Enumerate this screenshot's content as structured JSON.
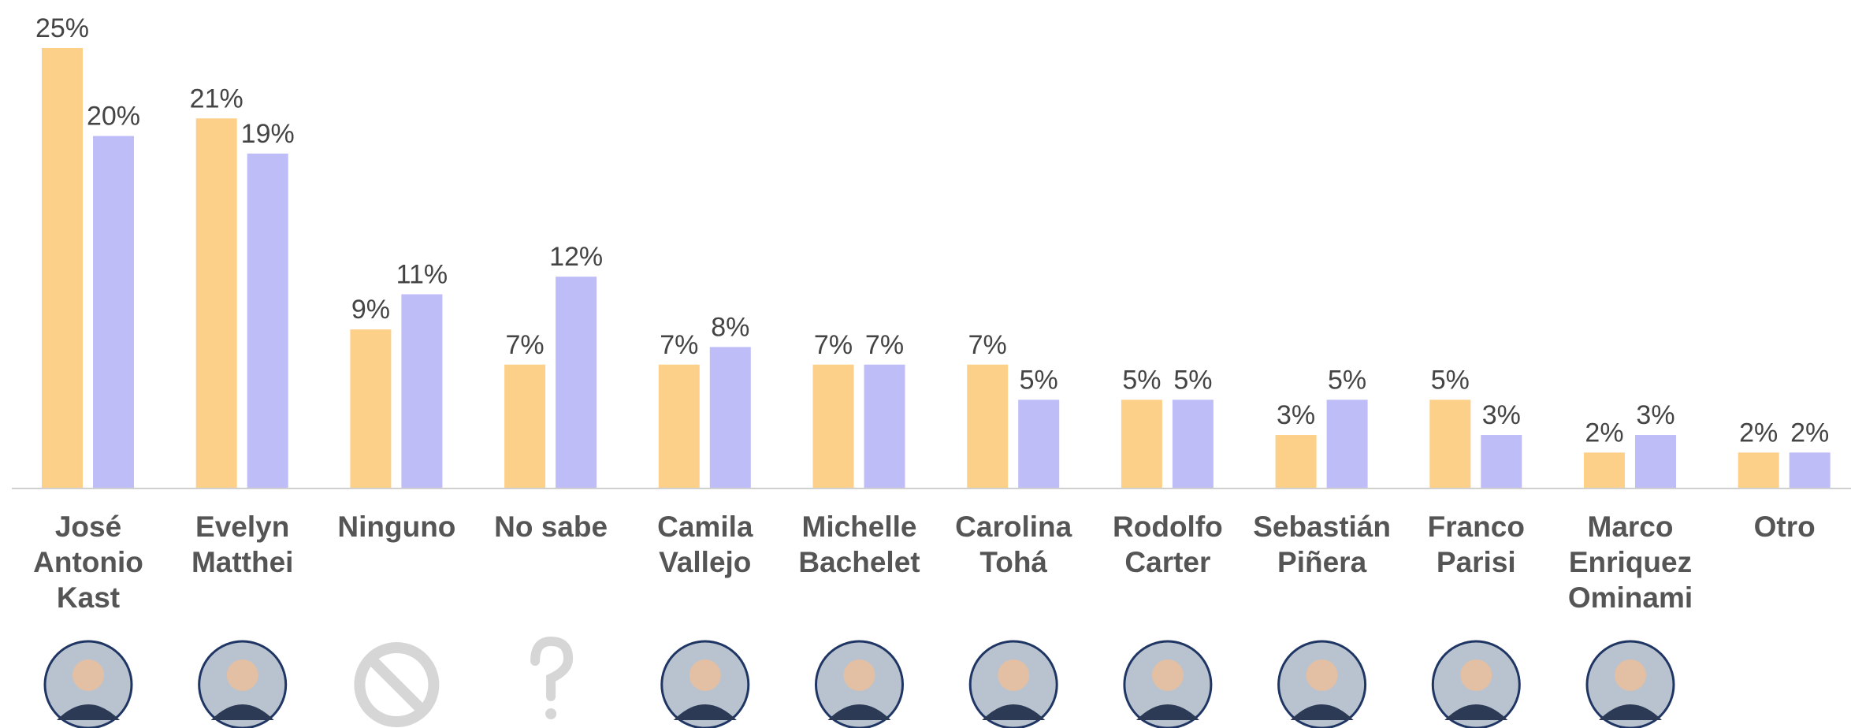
{
  "chart_data": {
    "type": "bar",
    "categories": [
      [
        "José",
        "Antonio",
        "Kast"
      ],
      [
        "Evelyn",
        "Matthei"
      ],
      [
        "Ninguno"
      ],
      [
        "No sabe"
      ],
      [
        "Camila",
        "Vallejo"
      ],
      [
        "Michelle",
        "Bachelet"
      ],
      [
        "Carolina",
        "Tohá"
      ],
      [
        "Rodolfo",
        "Carter"
      ],
      [
        "Sebastián",
        "Piñera"
      ],
      [
        "Franco",
        "Parisi"
      ],
      [
        "Marco",
        "Enriquez",
        "Ominami"
      ],
      [
        "Otro"
      ]
    ],
    "series": [
      {
        "color": "#fdd08a",
        "values": [
          25,
          21,
          9,
          7,
          7,
          7,
          7,
          5,
          3,
          5,
          2,
          2
        ],
        "value_labels": [
          "25%",
          "21%",
          "9%",
          "7%",
          "7%",
          "7%",
          "7%",
          "5%",
          "3%",
          "5%",
          "2%",
          "2%"
        ]
      },
      {
        "color": "#bfbdf8",
        "values": [
          20,
          19,
          11,
          12,
          8,
          7,
          5,
          5,
          5,
          3,
          3,
          2
        ],
        "value_labels": [
          "20%",
          "19%",
          "11%",
          "12%",
          "8%",
          "7%",
          "5%",
          "5%",
          "5%",
          "3%",
          "3%",
          "2%"
        ]
      }
    ]
  }
}
